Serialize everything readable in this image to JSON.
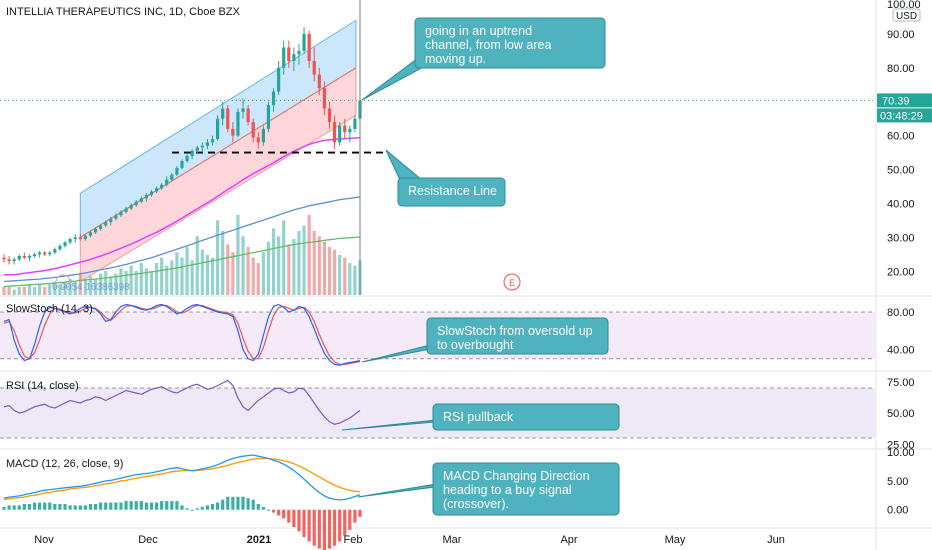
{
  "header": {
    "symbol_title": "INTELLIA THERAPEUTICS INC, 1D, Cboe BZX",
    "currency": "USD",
    "last_price": "70.39",
    "countdown": "03:48:29",
    "top_tick_partial": "100.00"
  },
  "colors": {
    "up": "#26a69a",
    "down": "#ef5350",
    "channel_upper_fill": "#bbdefb",
    "channel_lower_fill": "#ffcdd2",
    "callout_fill": "#4fb3bf",
    "callout_stroke": "#2a8b96",
    "ma_magenta": "#e040fb",
    "ma_blue": "#5b8fd6",
    "ma_green": "#66bb6a",
    "price_line": "#26a69a",
    "badge_bg": "#26a69a",
    "stoch_band": "#f3e5f5",
    "rsi_band": "#ede7f6"
  },
  "main_pane": {
    "watermark_text": "0.9054   16386398",
    "earnings_marker": "E",
    "y_ticks": [
      "90.00",
      "80.00",
      "70.00",
      "60.00",
      "50.00",
      "40.00",
      "30.00",
      "20.00"
    ],
    "callouts": [
      {
        "text_lines": [
          "going in an uptrend",
          "channel, from low area",
          "moving up."
        ]
      },
      {
        "text_lines": [
          "Resistance Line"
        ]
      }
    ]
  },
  "stoch_pane": {
    "label": "SlowStoch (14, 3)",
    "y_ticks": [
      "80.00",
      "40.00"
    ],
    "callout_lines": [
      "SlowStoch from oversold up",
      "to overbought"
    ]
  },
  "rsi_pane": {
    "label": "RSI (14, close)",
    "y_ticks": [
      "75.00",
      "50.00",
      "25.00"
    ],
    "callout_lines": [
      "RSI pullback"
    ]
  },
  "macd_pane": {
    "label": "MACD (12, 26, close, 9)",
    "y_ticks": [
      "10.00",
      "5.00",
      "0.00"
    ],
    "callout_lines": [
      "MACD Changing Direction",
      "heading to a buy signal",
      "(crossover)."
    ]
  },
  "x_axis": {
    "labels": [
      "Nov",
      "Dec",
      "2021",
      "Feb",
      "Mar",
      "Apr",
      "May",
      "Jun"
    ]
  },
  "chart_data": {
    "type": "candlestick",
    "title": "INTELLIA THERAPEUTICS INC, 1D, Cboe BZX",
    "ylim": [
      13,
      100
    ],
    "resistance_level": 55,
    "channel": {
      "date_range": [
        "Nov 11",
        "Feb 3"
      ],
      "upper_start": 43,
      "upper_end": 94,
      "mid_start": 30,
      "mid_end": 80,
      "lower_start": 17,
      "lower_end": 66
    },
    "ohlc": [
      [
        24,
        25,
        22.5,
        23.5
      ],
      [
        23.5,
        24.5,
        22,
        23
      ],
      [
        23,
        24,
        22,
        23.5
      ],
      [
        23.5,
        25,
        23,
        24.5
      ],
      [
        24.5,
        25.5,
        23.5,
        24
      ],
      [
        24,
        25,
        23,
        24.5
      ],
      [
        24.5,
        25.5,
        24,
        25
      ],
      [
        25,
        26,
        24,
        25.5
      ],
      [
        25.5,
        26,
        24.5,
        25
      ],
      [
        25,
        26,
        24.5,
        25.5
      ],
      [
        25.5,
        27,
        25,
        26.5
      ],
      [
        26.5,
        28,
        26,
        27.5
      ],
      [
        27.5,
        29,
        27,
        28.5
      ],
      [
        28.5,
        30,
        28,
        29.5
      ],
      [
        29.5,
        31,
        28.5,
        30
      ],
      [
        30,
        31,
        29,
        29.5
      ],
      [
        29.5,
        31,
        29,
        30.5
      ],
      [
        30.5,
        32,
        30,
        31.5
      ],
      [
        31.5,
        33,
        31,
        32.5
      ],
      [
        32.5,
        34,
        32,
        33.5
      ],
      [
        33.5,
        35,
        33,
        34.5
      ],
      [
        34.5,
        36,
        33.5,
        35.5
      ],
      [
        35.5,
        37,
        35,
        36.5
      ],
      [
        36.5,
        38,
        36,
        37.5
      ],
      [
        37.5,
        39,
        37,
        38.5
      ],
      [
        38.5,
        40,
        38,
        39.5
      ],
      [
        39.5,
        41,
        39,
        40.5
      ],
      [
        40.5,
        42,
        40,
        41.5
      ],
      [
        41.5,
        43,
        40.5,
        42.5
      ],
      [
        42.5,
        44,
        42,
        43.5
      ],
      [
        43.5,
        45,
        43,
        44.5
      ],
      [
        44.5,
        46,
        44,
        45.5
      ],
      [
        45.5,
        48,
        45,
        47
      ],
      [
        47,
        49,
        46.5,
        48.5
      ],
      [
        48.5,
        51,
        48,
        50.5
      ],
      [
        50.5,
        53,
        50,
        52.5
      ],
      [
        52.5,
        55,
        52,
        54
      ],
      [
        54,
        56,
        53,
        55.5
      ],
      [
        55.5,
        57,
        54.5,
        56.5
      ],
      [
        56.5,
        58,
        55,
        57
      ],
      [
        57,
        59,
        56,
        58
      ],
      [
        58,
        60,
        57,
        59
      ],
      [
        59,
        66,
        58.5,
        65
      ],
      [
        65,
        70,
        63,
        68
      ],
      [
        68,
        69,
        61,
        62
      ],
      [
        62,
        64,
        58,
        60
      ],
      [
        60,
        68,
        59.5,
        67
      ],
      [
        67,
        71,
        65,
        68
      ],
      [
        68,
        69,
        63,
        64
      ],
      [
        64,
        65,
        58,
        59.5
      ],
      [
        59.5,
        61,
        56,
        58
      ],
      [
        58,
        63,
        57,
        62
      ],
      [
        62,
        70,
        61,
        69
      ],
      [
        69,
        74,
        67,
        73
      ],
      [
        73,
        82,
        72,
        80
      ],
      [
        80,
        88,
        78,
        86
      ],
      [
        86,
        88,
        80,
        82
      ],
      [
        82,
        86,
        79,
        84
      ],
      [
        84,
        87,
        81,
        85
      ],
      [
        85,
        92,
        84,
        90
      ],
      [
        90,
        91,
        80,
        82
      ],
      [
        82,
        86,
        76,
        78
      ],
      [
        78,
        80,
        72,
        74
      ],
      [
        74,
        76,
        66,
        68
      ],
      [
        68,
        70,
        62,
        64
      ],
      [
        64,
        66,
        56,
        58
      ],
      [
        58,
        64,
        57,
        63
      ],
      [
        63,
        65,
        59,
        61
      ],
      [
        61,
        63,
        58,
        62
      ],
      [
        62,
        66,
        61,
        65
      ],
      [
        65,
        71,
        64,
        70.39
      ]
    ],
    "volume": [
      3,
      3,
      2,
      3,
      3,
      4,
      3,
      4,
      3,
      4,
      5,
      4,
      5,
      6,
      5,
      8,
      6,
      7,
      6,
      8,
      9,
      7,
      8,
      10,
      9,
      11,
      9,
      12,
      10,
      9,
      12,
      14,
      11,
      13,
      16,
      14,
      18,
      13,
      22,
      17,
      15,
      14,
      28,
      24,
      19,
      16,
      30,
      22,
      18,
      14,
      12,
      16,
      20,
      25,
      22,
      28,
      19,
      21,
      24,
      26,
      30,
      24,
      22,
      20,
      18,
      17,
      15,
      14,
      12,
      11,
      13
    ],
    "ma_fast": [
      19,
      19,
      19,
      19.2,
      19.4,
      19.6,
      19.8,
      20,
      20.2,
      20.5,
      20.8,
      21.1,
      21.5,
      21.9,
      22.3,
      22.7,
      23.1,
      23.5,
      24,
      24.5,
      25,
      25.6,
      26.2,
      26.8,
      27.4,
      28,
      28.7,
      29.4,
      30.1,
      30.8,
      31.5,
      32.3,
      33.1,
      33.9,
      34.8,
      35.7,
      36.6,
      37.5,
      38.4,
      39.3,
      40.2,
      41.1,
      42.1,
      43.1,
      44.1,
      45,
      46,
      47,
      47.9,
      48.8,
      49.6,
      50.4,
      51.2,
      52,
      52.9,
      53.8,
      54.6,
      55.4,
      56.1,
      56.8,
      57.4,
      57.9,
      58.3,
      58.6,
      58.8,
      58.9,
      59,
      59.1,
      59.2,
      59.3,
      59.4
    ],
    "ma_mid": [
      17,
      17.1,
      17.2,
      17.3,
      17.4,
      17.5,
      17.6,
      17.7,
      17.9,
      18,
      18.2,
      18.4,
      18.6,
      18.8,
      19,
      19.3,
      19.5,
      19.8,
      20.1,
      20.4,
      20.7,
      21,
      21.3,
      21.7,
      22,
      22.4,
      22.8,
      23.2,
      23.6,
      24,
      24.5,
      25,
      25.5,
      26,
      26.5,
      27,
      27.5,
      28,
      28.6,
      29.1,
      29.6,
      30.1,
      30.6,
      31.1,
      31.6,
      32.1,
      32.6,
      33.1,
      33.6,
      34.1,
      34.6,
      35.1,
      35.6,
      36.1,
      36.6,
      37.1,
      37.6,
      38.1,
      38.5,
      38.9,
      39.3,
      39.6,
      39.9,
      40.2,
      40.5,
      40.8,
      41.1,
      41.3,
      41.5,
      41.7,
      41.9
    ],
    "ma_slow": [
      15.5,
      15.6,
      15.7,
      15.8,
      15.9,
      16,
      16.1,
      16.2,
      16.3,
      16.4,
      16.5,
      16.7,
      16.8,
      17,
      17.1,
      17.3,
      17.4,
      17.6,
      17.7,
      17.9,
      18,
      18.2,
      18.4,
      18.6,
      18.8,
      19,
      19.2,
      19.4,
      19.6,
      19.8,
      20,
      20.3,
      20.5,
      20.8,
      21,
      21.3,
      21.6,
      21.9,
      22.2,
      22.5,
      22.8,
      23.1,
      23.4,
      23.7,
      24,
      24.3,
      24.6,
      24.9,
      25.2,
      25.5,
      25.8,
      26.1,
      26.4,
      26.7,
      27,
      27.3,
      27.6,
      27.9,
      28.1,
      28.3,
      28.5,
      28.7,
      28.9,
      29.1,
      29.3,
      29.5,
      29.7,
      29.8,
      29.9,
      30,
      30.1
    ],
    "stoch_k": [
      70,
      72,
      50,
      35,
      28,
      30,
      45,
      65,
      80,
      85,
      84,
      82,
      80,
      78,
      80,
      84,
      86,
      85,
      83,
      78,
      70,
      72,
      80,
      86,
      88,
      87,
      85,
      83,
      82,
      84,
      87,
      88,
      86,
      82,
      78,
      80,
      84,
      87,
      88,
      86,
      84,
      82,
      80,
      79,
      78,
      75,
      60,
      40,
      30,
      28,
      35,
      55,
      75,
      86,
      88,
      85,
      80,
      82,
      86,
      84,
      75,
      62,
      48,
      36,
      28,
      24,
      23,
      25,
      26,
      27,
      28
    ],
    "stoch_d": [
      68,
      70,
      60,
      45,
      33,
      30,
      36,
      50,
      66,
      78,
      84,
      83,
      81,
      79,
      79,
      81,
      84,
      85,
      84,
      80,
      74,
      71,
      76,
      82,
      86,
      87,
      86,
      84,
      83,
      83,
      85,
      87,
      87,
      84,
      80,
      79,
      81,
      85,
      87,
      87,
      85,
      83,
      81,
      80,
      79,
      77,
      68,
      52,
      38,
      30,
      30,
      42,
      60,
      76,
      85,
      86,
      84,
      82,
      84,
      85,
      80,
      70,
      56,
      44,
      33,
      27,
      24,
      24,
      25,
      26,
      27
    ],
    "rsi": [
      55,
      56,
      52,
      50,
      51,
      53,
      55,
      56,
      57,
      55,
      54,
      56,
      58,
      60,
      59,
      58,
      60,
      61,
      63,
      62,
      60,
      62,
      64,
      66,
      68,
      67,
      66,
      65,
      67,
      69,
      70,
      71,
      69,
      67,
      66,
      68,
      70,
      72,
      73,
      71,
      69,
      70,
      72,
      74,
      76,
      72,
      62,
      55,
      52,
      56,
      60,
      63,
      66,
      69,
      70,
      68,
      66,
      67,
      70,
      69,
      64,
      58,
      52,
      47,
      43,
      41,
      42,
      44,
      46,
      49,
      52
    ],
    "macd_line": [
      2,
      2.2,
      2.3,
      2.4,
      2.6,
      2.8,
      3,
      3.2,
      3.4,
      3.5,
      3.6,
      3.7,
      3.8,
      3.9,
      4,
      4.1,
      4.2,
      4.4,
      4.6,
      4.8,
      5,
      5.1,
      5.3,
      5.5,
      5.7,
      5.9,
      6.1,
      6.2,
      6.3,
      6.4,
      6.6,
      6.8,
      7,
      7.2,
      7.3,
      7.1,
      6.9,
      6.8,
      6.9,
      7.1,
      7.3,
      7.5,
      7.8,
      8.2,
      8.6,
      8.9,
      9.1,
      9.3,
      9.4,
      9.5,
      9.3,
      9.1,
      8.9,
      8.6,
      8.3,
      7.9,
      7.4,
      6.8,
      6.1,
      5.3,
      4.5,
      3.7,
      3,
      2.4,
      2,
      1.8,
      1.7,
      1.8,
      2,
      2.3,
      2.6
    ],
    "macd_signal": [
      1.8,
      1.9,
      2,
      2.1,
      2.2,
      2.4,
      2.5,
      2.7,
      2.9,
      3,
      3.2,
      3.3,
      3.4,
      3.6,
      3.7,
      3.8,
      3.9,
      4,
      4.2,
      4.3,
      4.5,
      4.6,
      4.8,
      5,
      5.1,
      5.3,
      5.5,
      5.6,
      5.8,
      5.9,
      6.1,
      6.2,
      6.4,
      6.6,
      6.7,
      6.8,
      6.8,
      6.8,
      6.8,
      6.9,
      7,
      7.1,
      7.3,
      7.5,
      7.7,
      8,
      8.2,
      8.4,
      8.6,
      8.8,
      8.9,
      8.9,
      8.9,
      8.8,
      8.7,
      8.5,
      8.3,
      8,
      7.6,
      7.2,
      6.7,
      6.2,
      5.7,
      5.2,
      4.7,
      4.3,
      3.9,
      3.6,
      3.4,
      3.2,
      3.1
    ]
  }
}
